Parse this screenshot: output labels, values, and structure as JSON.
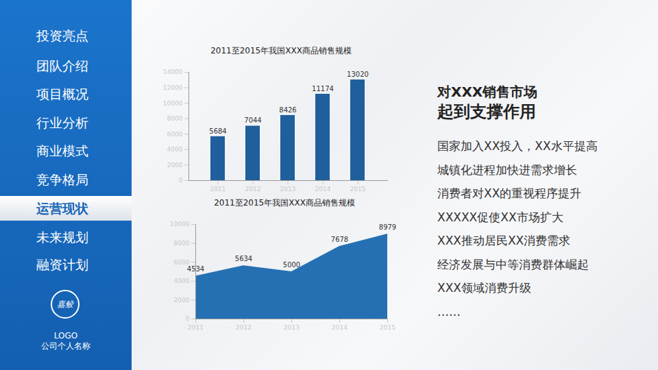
{
  "sidebar": {
    "menu": [
      "投资亮点",
      "团队介绍",
      "项目概况",
      "行业分析",
      "商业模式",
      "竞争格局",
      "运营现状",
      "未来规划",
      "融资计划"
    ],
    "active": "运营现状",
    "logo_mark": "嘉鲛",
    "logo": "LOGO",
    "company": "公司个人名称"
  },
  "chart_data": [
    {
      "type": "bar",
      "title": "2011至2015年我国XXX商品销售规模",
      "categories": [
        "2011",
        "2012",
        "2013",
        "2014",
        "2015"
      ],
      "values": [
        5684,
        7044,
        8426,
        11174,
        13020
      ],
      "color": "#1f5f9c",
      "ylim": [
        0,
        14000
      ],
      "yticks": [
        0,
        2000,
        4000,
        6000,
        8000,
        10000,
        12000,
        14000
      ],
      "data_labels": true
    },
    {
      "type": "area",
      "title": "2011至2015年我国XXX商品销售规模",
      "categories": [
        "2011",
        "2012",
        "2013",
        "2014",
        "2015"
      ],
      "values": [
        4534,
        5634,
        5000,
        7678,
        8979
      ],
      "color": "#2570b3",
      "ylim": [
        0,
        10000
      ],
      "yticks": [
        0,
        2000,
        4000,
        6000,
        8000,
        10000
      ],
      "data_labels": true
    }
  ],
  "panel": {
    "heading": [
      "对XXX销售市场",
      "起到支撑作用"
    ],
    "points": [
      "国家加入XX投入，XX水平提高",
      "城镇化进程加快进需求增长",
      "消费者对XX的重视程序提升",
      "XXXXX促使XX市场扩大",
      "XXX推动居民XX消费需求",
      "经济发展与中等消费群体崛起",
      "XXX领域消费升级",
      "……"
    ]
  }
}
